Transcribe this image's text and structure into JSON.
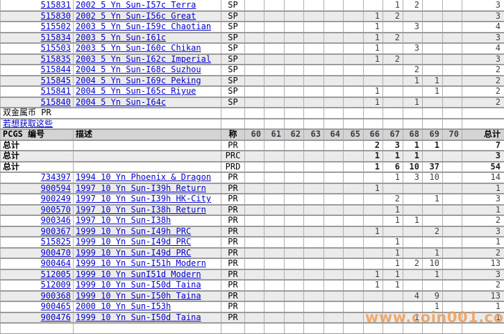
{
  "watermark": "www.coin001.com",
  "colors": {
    "link_blue": "#0000cc",
    "header_bg": "#d4d4d4",
    "alt_row_bg": "#ebebeb",
    "grid_border": "#9b9b9b",
    "watermark_orange": "#f0994a"
  },
  "header": {
    "pcgs_number": "PCGS 编号",
    "description": "描述",
    "designation": "称",
    "grades": [
      "60",
      "61",
      "62",
      "63",
      "64",
      "65",
      "66",
      "67",
      "68",
      "69",
      "70"
    ],
    "total": "总计"
  },
  "middle": {
    "group_title": "双金属币  PR",
    "link_text": "若想获取这些"
  },
  "totals_label": "总计",
  "sp_rows": [
    {
      "pcgs": "515831",
      "desc": "2002 5 Yn Sun-I57c Terra",
      "designation": "SP",
      "grades": [
        "",
        "",
        "",
        "",
        "",
        "",
        "",
        "1",
        "2",
        "",
        ""
      ],
      "total": "3"
    },
    {
      "pcgs": "515830",
      "desc": "2002 5 Yn Sun-I56c Great",
      "designation": "SP",
      "grades": [
        "",
        "",
        "",
        "",
        "",
        "",
        "1",
        "2",
        "",
        "",
        ""
      ],
      "total": "3"
    },
    {
      "pcgs": "515502",
      "desc": "2003 5 Yn Sun-I59c Chaotian",
      "designation": "SP",
      "grades": [
        "",
        "",
        "",
        "",
        "",
        "",
        "1",
        "",
        "3",
        "",
        ""
      ],
      "total": "4"
    },
    {
      "pcgs": "515834",
      "desc": "2003 5 Yn Sun-I61c",
      "designation": "SP",
      "grades": [
        "",
        "",
        "",
        "",
        "",
        "",
        "1",
        "2",
        "",
        "",
        ""
      ],
      "total": "3"
    },
    {
      "pcgs": "515503",
      "desc": "2003 5 Yn Sun-I60c Chikan",
      "designation": "SP",
      "grades": [
        "",
        "",
        "",
        "",
        "",
        "",
        "1",
        "",
        "3",
        "",
        ""
      ],
      "total": "4"
    },
    {
      "pcgs": "515835",
      "desc": "2003 5 Yn Sun-I62c Imperial",
      "designation": "SP",
      "grades": [
        "",
        "",
        "",
        "",
        "",
        "",
        "1",
        "2",
        "",
        "",
        ""
      ],
      "total": "3"
    },
    {
      "pcgs": "515844",
      "desc": "2004 5 Yn Sun-I68c Suzhou",
      "designation": "SP",
      "grades": [
        "",
        "",
        "",
        "",
        "",
        "",
        "",
        "",
        "2",
        "",
        ""
      ],
      "total": "2"
    },
    {
      "pcgs": "515845",
      "desc": "2004 5 Yn Sun-I69c Peking",
      "designation": "SP",
      "grades": [
        "",
        "",
        "",
        "",
        "",
        "",
        "",
        "",
        "1",
        "1",
        ""
      ],
      "total": "2"
    },
    {
      "pcgs": "515841",
      "desc": "2004 5 Yn Sun-I65c Riyue",
      "designation": "SP",
      "grades": [
        "",
        "",
        "",
        "",
        "",
        "",
        "1",
        "",
        "",
        "1",
        ""
      ],
      "total": "2"
    },
    {
      "pcgs": "515840",
      "desc": "2004 5 Yn Sun-I64c",
      "designation": "SP",
      "grades": [
        "",
        "",
        "",
        "",
        "",
        "",
        "1",
        "",
        "1",
        "",
        ""
      ],
      "total": "2"
    }
  ],
  "totals_rows": [
    {
      "designation": "PR",
      "grades": [
        "",
        "",
        "",
        "",
        "",
        "",
        "2",
        "3",
        "1",
        "1",
        ""
      ],
      "total": "7"
    },
    {
      "designation": "PRC",
      "grades": [
        "",
        "",
        "",
        "",
        "",
        "",
        "1",
        "1",
        "1",
        "",
        ""
      ],
      "total": "3"
    },
    {
      "designation": "PRD",
      "grades": [
        "",
        "",
        "",
        "",
        "",
        "",
        "1",
        "6",
        "10",
        "37",
        ""
      ],
      "total": "54"
    }
  ],
  "pr_rows": [
    {
      "pcgs": "734397",
      "desc": "1994 10 Yn Phoenix & Dragon",
      "designation": "PR",
      "grades": [
        "",
        "",
        "",
        "",
        "",
        "",
        "",
        "1",
        "3",
        "10",
        ""
      ],
      "total": "14"
    },
    {
      "pcgs": "900594",
      "desc": "1997 10 Yn Sun-I39h Return",
      "designation": "PR",
      "grades": [
        "",
        "",
        "",
        "",
        "",
        "",
        "1",
        "",
        "",
        "",
        ""
      ],
      "total": "1"
    },
    {
      "pcgs": "900249",
      "desc": "1997 10 Yn Sun-I39h HK-City",
      "designation": "PR",
      "grades": [
        "",
        "",
        "",
        "",
        "",
        "",
        "",
        "2",
        "",
        "1",
        ""
      ],
      "total": "3"
    },
    {
      "pcgs": "900570",
      "desc": "1997 10 Yn Sun-I38h Return",
      "designation": "PR",
      "grades": [
        "",
        "",
        "",
        "",
        "",
        "",
        "",
        "1",
        "",
        "",
        ""
      ],
      "total": "1"
    },
    {
      "pcgs": "900346",
      "desc": "1997 10 Yn Sun-I38h",
      "designation": "PR",
      "grades": [
        "",
        "",
        "",
        "",
        "",
        "",
        "",
        "1",
        "1",
        "",
        ""
      ],
      "total": "2"
    },
    {
      "pcgs": "900367",
      "desc": "1999 10 Yn Sun-I49h PRC",
      "designation": "PR",
      "grades": [
        "",
        "",
        "",
        "",
        "",
        "",
        "1",
        "",
        "",
        "2",
        ""
      ],
      "total": "3"
    },
    {
      "pcgs": "515825",
      "desc": "1999 10 Yn Sun-I49d PRC",
      "designation": "PR",
      "grades": [
        "",
        "",
        "",
        "",
        "",
        "",
        "",
        "1",
        "",
        "",
        ""
      ],
      "total": "1"
    },
    {
      "pcgs": "900470",
      "desc": "1999 10 Yn Sun-I49d PRC",
      "designation": "PR",
      "grades": [
        "",
        "",
        "",
        "",
        "",
        "",
        "",
        "1",
        "",
        "1",
        ""
      ],
      "total": "2"
    },
    {
      "pcgs": "900464",
      "desc": "1999 10 Yn Sun-I51h Modern",
      "designation": "PR",
      "grades": [
        "",
        "",
        "",
        "",
        "",
        "",
        "",
        "1",
        "2",
        "10",
        ""
      ],
      "total": "13"
    },
    {
      "pcgs": "512005",
      "desc": "1999 10 Yn SunI51d Modern",
      "designation": "PR",
      "grades": [
        "",
        "",
        "",
        "",
        "",
        "",
        "1",
        "1",
        "",
        "1",
        ""
      ],
      "total": "3"
    },
    {
      "pcgs": "512009",
      "desc": "1999 10 Yn Sun-I50d Taina",
      "designation": "PR",
      "grades": [
        "",
        "",
        "",
        "",
        "",
        "",
        "1",
        "1",
        "",
        "",
        ""
      ],
      "total": "2"
    },
    {
      "pcgs": "900368",
      "desc": "1999 10 Yn Sun-I50h Taina",
      "designation": "PR",
      "grades": [
        "",
        "",
        "",
        "",
        "",
        "",
        "",
        "",
        "4",
        "9",
        ""
      ],
      "total": "13"
    },
    {
      "pcgs": "900465",
      "desc": "2000 10 Yn Sun-I53h",
      "designation": "PR",
      "grades": [
        "",
        "",
        "",
        "",
        "",
        "",
        "",
        "",
        "",
        "1",
        ""
      ],
      "total": "1"
    },
    {
      "pcgs": "900476",
      "desc": "1999 10 Yn Sun-I50d Taina",
      "designation": "PR",
      "grades": [
        "",
        "",
        "",
        "",
        "",
        "",
        "",
        "",
        "1",
        "",
        ""
      ],
      "total": "1"
    }
  ]
}
